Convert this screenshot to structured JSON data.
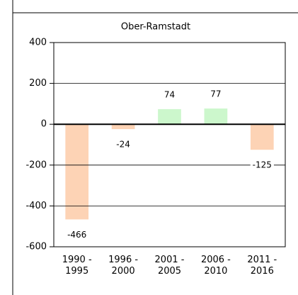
{
  "chart_data": {
    "type": "bar",
    "title": "Ober-Ramstadt",
    "categories": [
      [
        "1990 -",
        "1995"
      ],
      [
        "1996 -",
        "2000"
      ],
      [
        "2001 -",
        "2005"
      ],
      [
        "2006 -",
        "2010"
      ],
      [
        "2011 -",
        "2016"
      ]
    ],
    "values": [
      -466,
      -24,
      74,
      77,
      -125
    ],
    "colors": [
      "#fdd3b5",
      "#fdd3b5",
      "#ccf7cc",
      "#ccf7cc",
      "#fdd3b5"
    ],
    "ylim": [
      -600,
      400
    ],
    "yticks": [
      -600,
      -400,
      -200,
      0,
      200,
      400
    ],
    "grid": true
  }
}
